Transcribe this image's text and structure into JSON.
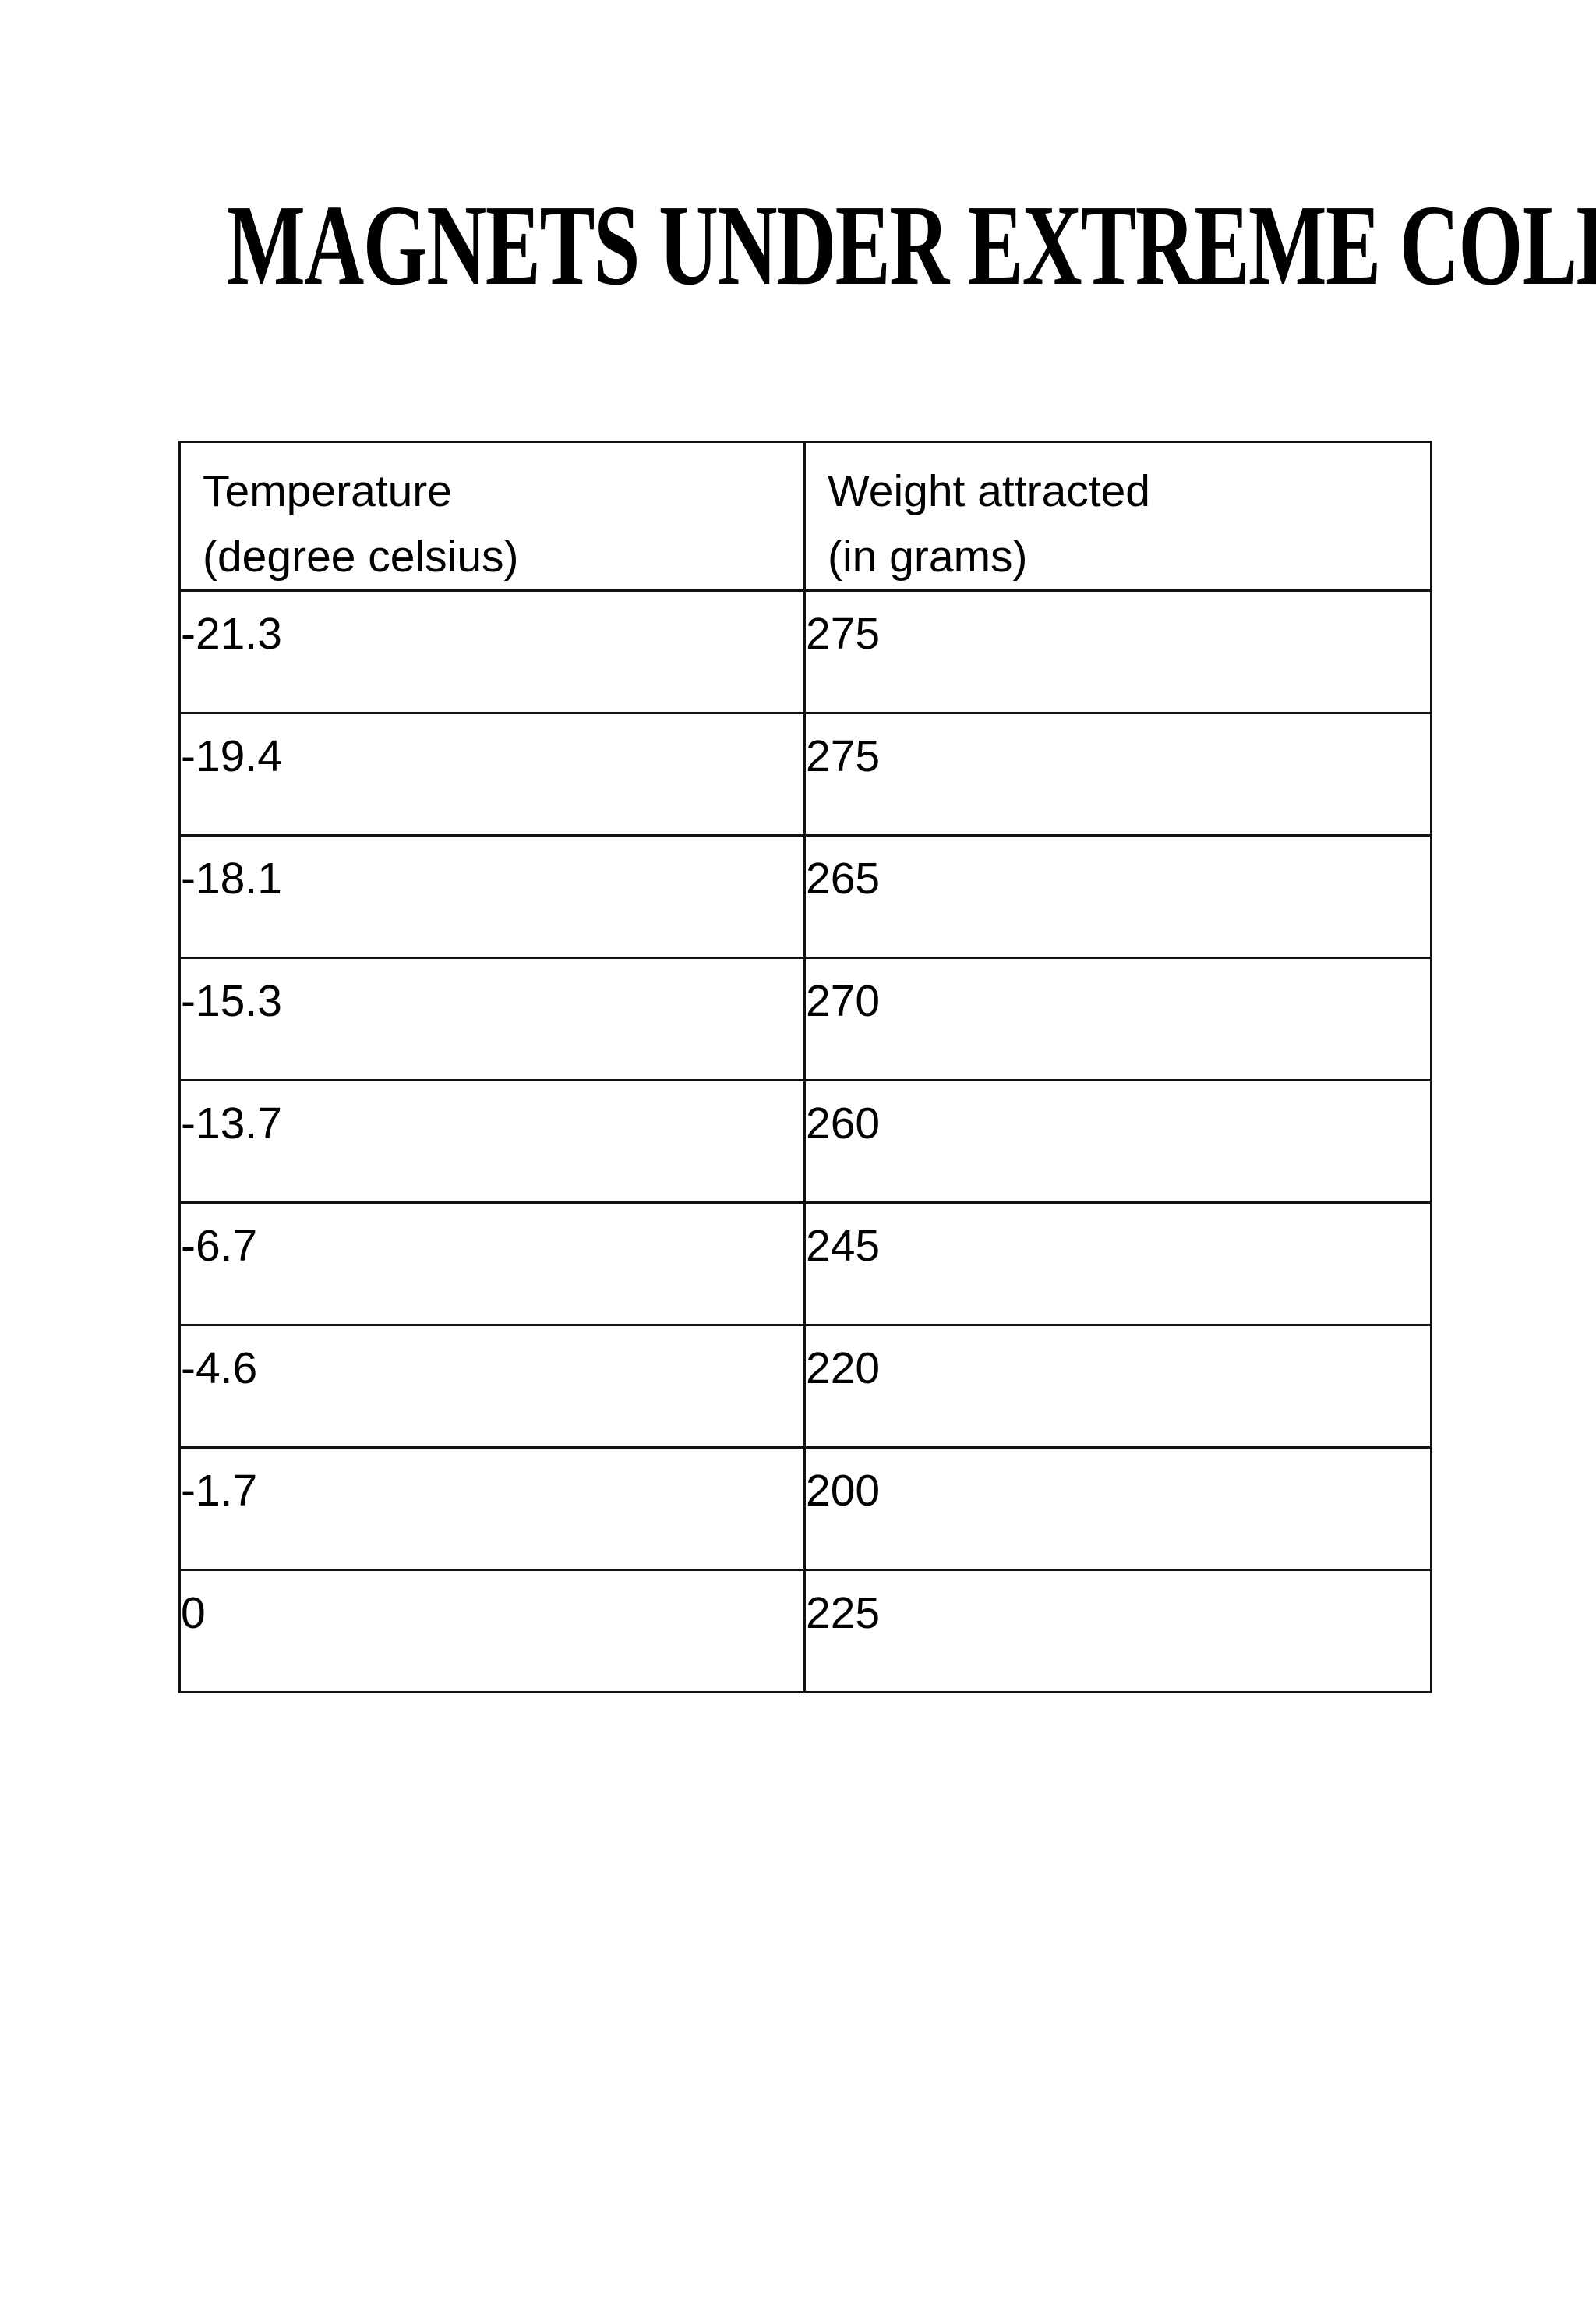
{
  "title": "MAGNETS UNDER EXTREME COLD",
  "table": {
    "headers": [
      {
        "line1": "Temperature",
        "line2": "(degree celsius)"
      },
      {
        "line1": "Weight attracted",
        "line2": "(in grams)"
      }
    ],
    "rows": [
      {
        "temperature": "-21.3",
        "weight": "275"
      },
      {
        "temperature": "-19.4",
        "weight": "275"
      },
      {
        "temperature": "-18.1",
        "weight": "265"
      },
      {
        "temperature": "-15.3",
        "weight": "270"
      },
      {
        "temperature": "-13.7",
        "weight": "260"
      },
      {
        "temperature": "-6.7",
        "weight": "245"
      },
      {
        "temperature": "-4.6",
        "weight": "220"
      },
      {
        "temperature": "-1.7",
        "weight": "200"
      },
      {
        "temperature": "0",
        "weight": "225"
      }
    ]
  }
}
